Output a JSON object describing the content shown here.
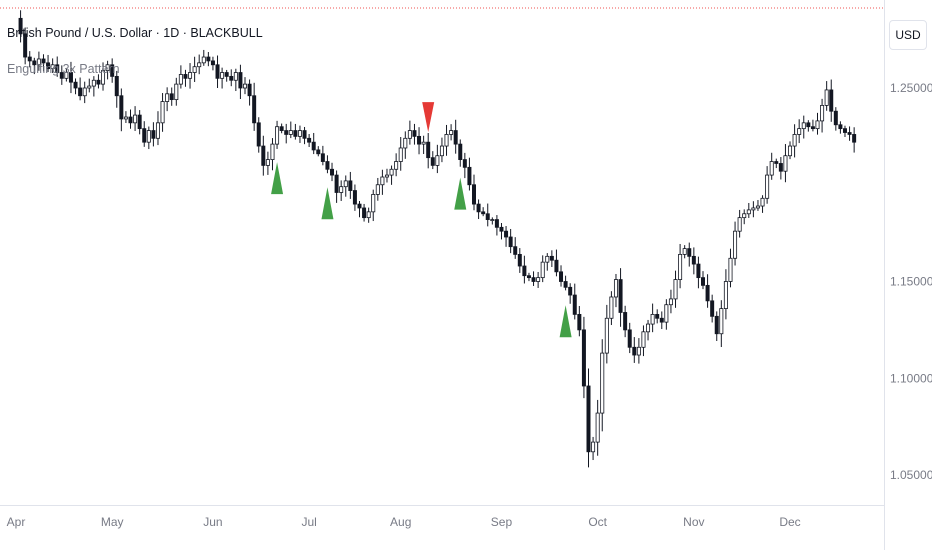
{
  "legend": {
    "title": "British Pound / U.S. Dollar · 1D · BLACKBULL",
    "indicator": "Engulfing 3x Pattern"
  },
  "price_axis": {
    "currency_label": "USD"
  },
  "colors": {
    "bullish_marker": "#43a047",
    "bearish_marker": "#e53935",
    "candle_up_fill": "#ffffff",
    "candle_down_fill": "#131722",
    "candle_stroke": "#131722",
    "axis_text": "#787b86",
    "price_line": "#ef5350"
  },
  "chart_data": {
    "type": "candlestick",
    "symbol": "British Pound / U.S. Dollar",
    "interval": "1D",
    "exchange": "BLACKBULL",
    "ylim": [
      1.03,
      1.285
    ],
    "y_ticks": [
      "1.25000",
      "1.15000",
      "1.10000",
      "1.05000"
    ],
    "y_tick_values": [
      1.25,
      1.15,
      1.1,
      1.05
    ],
    "x_ticks": [
      "Apr",
      "May",
      "Jun",
      "Jul",
      "Aug",
      "Sep",
      "Oct",
      "Nov",
      "Dec"
    ],
    "x_tick_indices": [
      0,
      21,
      43,
      64,
      84,
      106,
      127,
      148,
      169
    ],
    "grid": false,
    "closes": [
      1.286,
      1.278,
      1.266,
      1.264,
      1.262,
      1.265,
      1.263,
      1.26,
      1.262,
      1.258,
      1.255,
      1.258,
      1.253,
      1.25,
      1.246,
      1.25,
      1.251,
      1.254,
      1.252,
      1.259,
      1.262,
      1.256,
      1.246,
      1.234,
      1.235,
      1.232,
      1.236,
      1.229,
      1.222,
      1.228,
      1.224,
      1.232,
      1.243,
      1.247,
      1.244,
      1.252,
      1.257,
      1.255,
      1.258,
      1.261,
      1.263,
      1.266,
      1.264,
      1.262,
      1.255,
      1.258,
      1.256,
      1.254,
      1.258,
      1.25,
      1.252,
      1.246,
      1.232,
      1.22,
      1.21,
      1.213,
      1.221,
      1.23,
      1.228,
      1.226,
      1.228,
      1.225,
      1.228,
      1.224,
      1.222,
      1.218,
      1.216,
      1.212,
      1.208,
      1.205,
      1.196,
      1.199,
      1.202,
      1.197,
      1.19,
      1.188,
      1.183,
      1.186,
      1.195,
      1.2,
      1.204,
      1.205,
      1.208,
      1.212,
      1.219,
      1.224,
      1.228,
      1.225,
      1.221,
      1.222,
      1.214,
      1.21,
      1.215,
      1.22,
      1.226,
      1.228,
      1.221,
      1.213,
      1.209,
      1.2,
      1.19,
      1.186,
      1.185,
      1.182,
      1.182,
      1.178,
      1.176,
      1.173,
      1.168,
      1.164,
      1.158,
      1.153,
      1.152,
      1.15,
      1.152,
      1.16,
      1.163,
      1.161,
      1.155,
      1.15,
      1.147,
      1.143,
      1.133,
      1.125,
      1.096,
      1.062,
      1.067,
      1.082,
      1.113,
      1.131,
      1.142,
      1.151,
      1.134,
      1.125,
      1.116,
      1.112,
      1.116,
      1.124,
      1.128,
      1.133,
      1.131,
      1.129,
      1.138,
      1.141,
      1.151,
      1.164,
      1.167,
      1.163,
      1.159,
      1.152,
      1.148,
      1.14,
      1.132,
      1.123,
      1.136,
      1.15,
      1.162,
      1.176,
      1.183,
      1.185,
      1.187,
      1.188,
      1.189,
      1.193,
      1.205,
      1.212,
      1.211,
      1.207,
      1.215,
      1.22,
      1.226,
      1.229,
      1.232,
      1.23,
      1.229,
      1.233,
      1.241,
      1.249,
      1.238,
      1.231,
      1.229,
      1.227,
      1.226,
      1.222
    ],
    "markers": [
      {
        "index": 57,
        "direction": "bullish",
        "position": "below"
      },
      {
        "index": 68,
        "direction": "bullish",
        "position": "below"
      },
      {
        "index": 90,
        "direction": "bearish",
        "position": "above"
      },
      {
        "index": 97,
        "direction": "bullish",
        "position": "below"
      },
      {
        "index": 120,
        "direction": "bullish",
        "position": "below"
      }
    ]
  }
}
